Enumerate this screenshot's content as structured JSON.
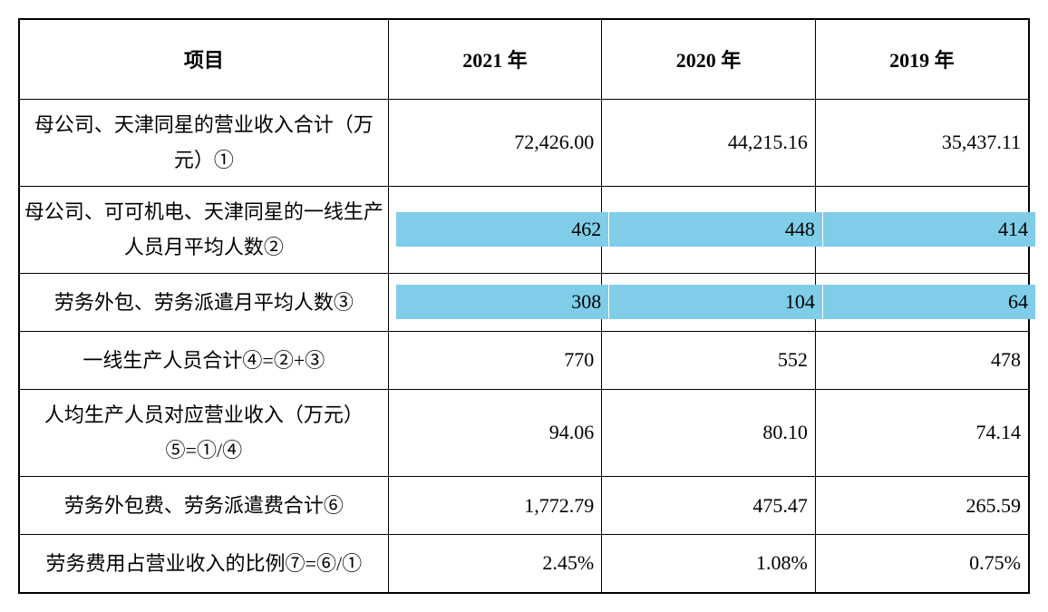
{
  "table": {
    "header": {
      "item": "项目",
      "year2021": "2021 年",
      "year2020": "2020 年",
      "year2019": "2019 年"
    },
    "rows": [
      {
        "label": "母公司、天津同星的营业收入合计（万元）①",
        "y2021": "72,426.00",
        "y2020": "44,215.16",
        "y2019": "35,437.11",
        "tall": true,
        "highlighted": false
      },
      {
        "label": "母公司、可可机电、天津同星的一线生产人员月平均人数②",
        "y2021": "462",
        "y2020": "448",
        "y2019": "414",
        "tall": true,
        "highlighted": true
      },
      {
        "label": "劳务外包、劳务派遣月平均人数③",
        "y2021": "308",
        "y2020": "104",
        "y2019": "64",
        "tall": false,
        "highlighted": true
      },
      {
        "label": "一线生产人员合计④=②+③",
        "y2021": "770",
        "y2020": "552",
        "y2019": "478",
        "tall": false,
        "highlighted": false
      },
      {
        "label": "人均生产人员对应营业收入（万元）⑤=①/④",
        "y2021": "94.06",
        "y2020": "80.10",
        "y2019": "74.14",
        "tall": true,
        "highlighted": false
      },
      {
        "label": "劳务外包费、劳务派遣费合计⑥",
        "y2021": "1,772.79",
        "y2020": "475.47",
        "y2019": "265.59",
        "tall": false,
        "highlighted": false
      },
      {
        "label": "劳务费用占营业收入的比例⑦=⑥/①",
        "y2021": "2.45%",
        "y2020": "1.08%",
        "y2019": "0.75%",
        "tall": false,
        "highlighted": false
      }
    ],
    "styling": {
      "border_color": "#000000",
      "highlight_color": "#7fcde8",
      "text_color": "#000000",
      "background_color": "#ffffff",
      "header_fontsize": 22,
      "cell_fontsize": 22,
      "font_family": "SimSun"
    }
  }
}
